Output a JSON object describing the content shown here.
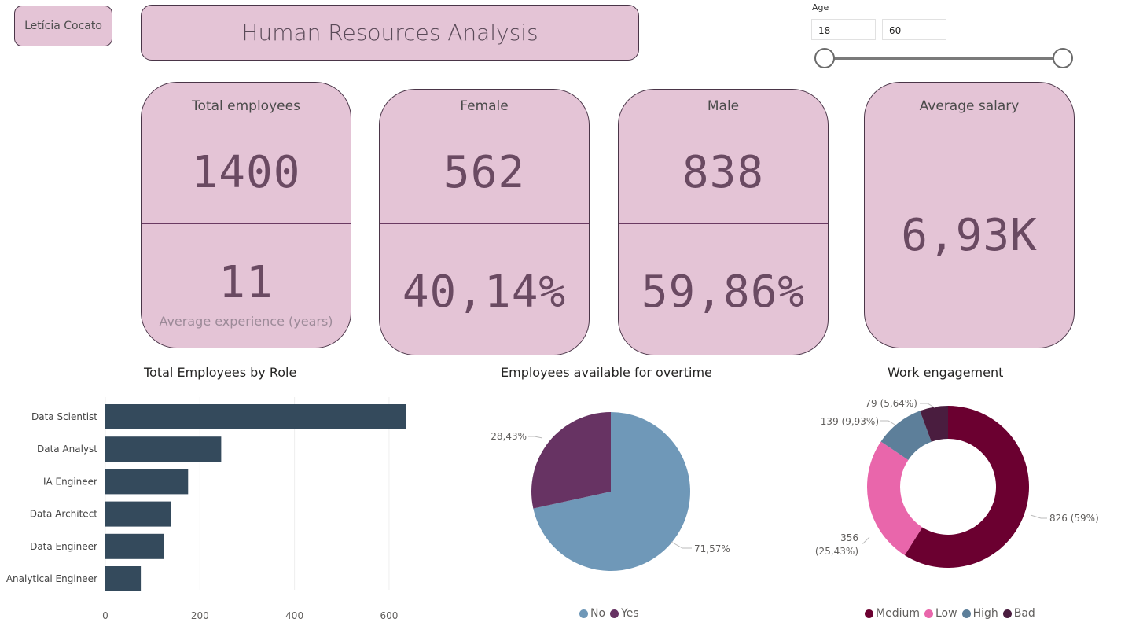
{
  "header": {
    "author": "Letícia Cocato",
    "title": "Human Resources Analysis"
  },
  "age_slicer": {
    "label": "Age",
    "min_value": "18",
    "max_value": "60"
  },
  "cards": {
    "total": {
      "label": "Total employees",
      "value": "1400",
      "sub_value": "11",
      "sub_label": "Average experience (years)"
    },
    "female": {
      "label": "Female",
      "value": "562",
      "percent": "40,14%"
    },
    "male": {
      "label": "Male",
      "value": "838",
      "percent": "59,86%"
    },
    "salary": {
      "label": "Average salary",
      "value": "6,93K"
    }
  },
  "colors": {
    "card_bg": "#e4c4d6",
    "bar": "#344a5c",
    "no": "#6f98b8",
    "yes": "#673363",
    "medium": "#6b0030",
    "low": "#e966ab",
    "high": "#5d7f9a",
    "bad": "#4a1d3f"
  },
  "chart_data": [
    {
      "type": "bar",
      "title": "Total Employees by Role",
      "categories": [
        "Data Scientist",
        "Data Analyst",
        "IA Engineer",
        "Data Architect",
        "Data Engineer",
        "Analytical Engineer"
      ],
      "values": [
        636,
        245,
        175,
        138,
        124,
        75
      ],
      "x_ticks": [
        "0",
        "200",
        "400",
        "600"
      ],
      "xlim": [
        0,
        700
      ]
    },
    {
      "type": "pie",
      "title": "Employees available for overtime",
      "categories": [
        "No",
        "Yes"
      ],
      "values": [
        71.57,
        28.43
      ],
      "labels": [
        "71,57%",
        "28,43%"
      ],
      "legend": "bottom"
    },
    {
      "type": "pie",
      "title": "Work engagement",
      "categories": [
        "Medium",
        "Low",
        "High",
        "Bad"
      ],
      "values": [
        826,
        356,
        139,
        79
      ],
      "labels": [
        "826 (59%)",
        "356",
        "(25,43%)",
        "139 (9,93%)",
        "79 (5,64%)"
      ],
      "legend": "bottom"
    }
  ]
}
